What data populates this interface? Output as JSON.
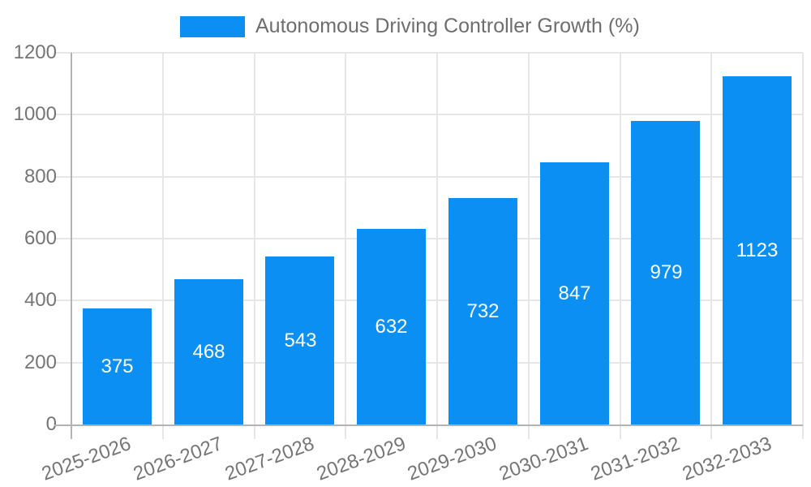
{
  "chart_data": {
    "type": "bar",
    "title": "Autonomous Driving Controller Growth (%)",
    "categories": [
      "2025-2026",
      "2026-2027",
      "2027-2028",
      "2028-2029",
      "2029-2030",
      "2030-2031",
      "2031-2032",
      "2032-2033"
    ],
    "values": [
      375,
      468,
      543,
      632,
      732,
      847,
      979,
      1123
    ],
    "xlabel": "",
    "ylabel": "",
    "ylim": [
      0,
      1200
    ],
    "yticks": [
      0,
      200,
      400,
      600,
      800,
      1000,
      1200
    ],
    "grid": true,
    "legend_position": "top",
    "x_label_rotation_deg": -20,
    "value_labels": "centered-white-inside-bars",
    "colors": {
      "bar": "#0b8ff2",
      "gridline": "#e6e6e6",
      "axis": "#b3b3b3",
      "axis_text": "#757575",
      "legend_text": "#6e6e6e",
      "value_label": "#ffffff",
      "background": "#ffffff"
    }
  }
}
